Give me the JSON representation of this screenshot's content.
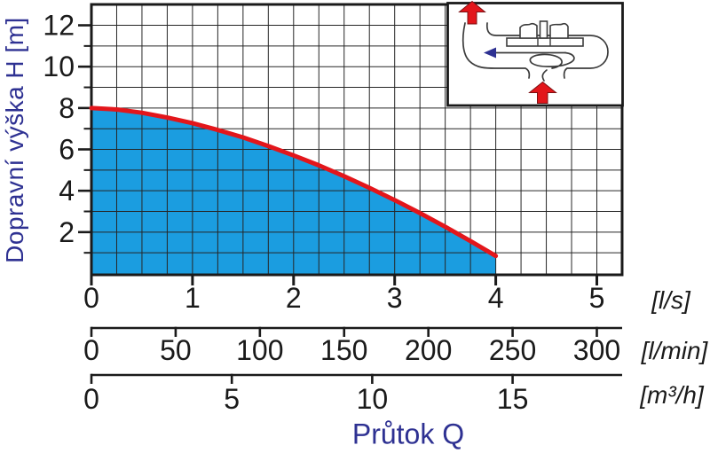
{
  "chart_data": {
    "type": "area",
    "title": "",
    "xlabel": "Průtok Q",
    "ylabel": "Dopravní výška H [m]",
    "ylim": [
      0,
      13
    ],
    "xlim_ls": [
      0,
      5.25
    ],
    "grid": {
      "visible": true,
      "x_minor_step_ls": 0.25,
      "y_minor_step_m": 1
    },
    "y_ticks": {
      "major": [
        2,
        4,
        6,
        8,
        10,
        12
      ],
      "minor": [
        1,
        3,
        5,
        7,
        9,
        11
      ]
    },
    "x_scales": [
      {
        "unit": "[l/s]",
        "ticks": [
          0,
          1,
          2,
          3,
          4,
          5
        ],
        "ls_per_unit": 1
      },
      {
        "unit": "[l/min]",
        "ticks": [
          0,
          50,
          100,
          150,
          200,
          250,
          300
        ],
        "ls_per_unit": 0.0166667
      },
      {
        "unit": "[m³/h]",
        "ticks": [
          0,
          5,
          10,
          15
        ],
        "ls_per_unit": 0.2777778
      }
    ],
    "series": [
      {
        "name": "pump H-Q curve",
        "color": "#e3161b",
        "area_fill": "#1b9de0",
        "points_q_ls_h_m": [
          [
            0,
            8
          ],
          [
            0.25,
            7.93
          ],
          [
            0.5,
            7.77
          ],
          [
            0.75,
            7.54
          ],
          [
            1,
            7.27
          ],
          [
            1.25,
            6.94
          ],
          [
            1.5,
            6.58
          ],
          [
            1.75,
            6.16
          ],
          [
            2,
            5.71
          ],
          [
            2.25,
            5.23
          ],
          [
            2.5,
            4.7
          ],
          [
            2.75,
            4.14
          ],
          [
            3,
            3.55
          ],
          [
            3.25,
            2.92
          ],
          [
            3.5,
            2.26
          ],
          [
            3.75,
            1.57
          ],
          [
            4,
            0.85
          ]
        ]
      }
    ],
    "legend": null
  },
  "inset": {
    "name": "pump cross-section flow schematic",
    "flow_arrow_color": "#e3161b",
    "direction_arrow_color": "#2e3192"
  },
  "colors": {
    "axis_title": "#2e3192",
    "tick_text": "#1a1a1a",
    "grid": "#262626",
    "border": "#1a1a1a",
    "background": "#ffffff"
  }
}
